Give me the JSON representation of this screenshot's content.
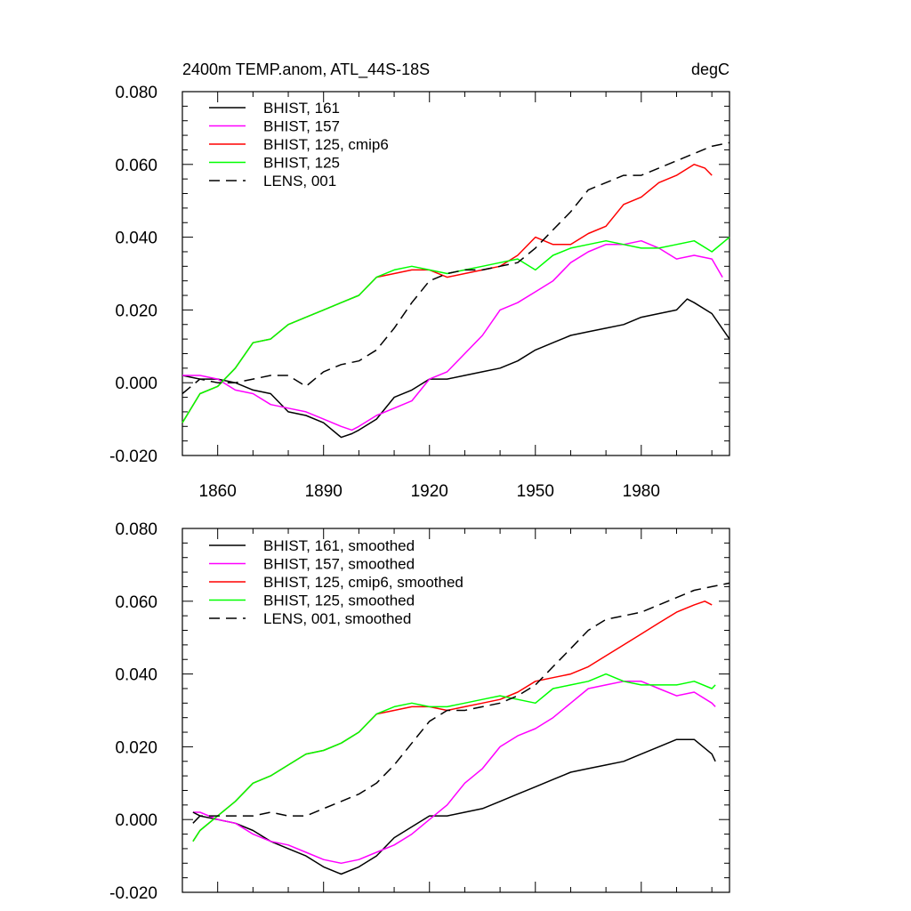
{
  "colors": {
    "BHIST_161": "#000000",
    "BHIST_157": "#ff00ff",
    "BHIST_125_cmip6": "#ff0000",
    "BHIST_125": "#00ff00",
    "LENS_001": "#000000"
  },
  "chart_data": [
    {
      "type": "line",
      "title_left": "2400m TEMP.anom, ATL_44S-18S",
      "title_right": "degC",
      "xlim": [
        1850,
        2005
      ],
      "ylim": [
        -0.02,
        0.08
      ],
      "y_ticks": [
        -0.02,
        0.0,
        0.02,
        0.04,
        0.06,
        0.08
      ],
      "y_tick_labels": [
        "-0.020",
        "0.000",
        "0.020",
        "0.040",
        "0.060",
        "0.080"
      ],
      "x_ticks": [
        1860,
        1890,
        1920,
        1950,
        1980
      ],
      "x_tick_labels": [
        "1860",
        "1890",
        "1920",
        "1950",
        "1980"
      ],
      "legend_position": "top-left",
      "series": [
        {
          "name": "BHIST, 161",
          "color_key": "BHIST_161",
          "dash": "solid",
          "x": [
            1850,
            1855,
            1860,
            1865,
            1870,
            1875,
            1880,
            1885,
            1890,
            1895,
            1898,
            1900,
            1905,
            1910,
            1915,
            1920,
            1925,
            1930,
            1935,
            1940,
            1945,
            1950,
            1955,
            1960,
            1965,
            1970,
            1975,
            1980,
            1985,
            1990,
            1993,
            1995,
            2000,
            2005
          ],
          "y": [
            0.002,
            0.001,
            0.001,
            0.0,
            -0.002,
            -0.003,
            -0.008,
            -0.009,
            -0.011,
            -0.015,
            -0.014,
            -0.013,
            -0.01,
            -0.004,
            -0.002,
            0.001,
            0.001,
            0.002,
            0.003,
            0.004,
            0.006,
            0.009,
            0.011,
            0.013,
            0.014,
            0.015,
            0.016,
            0.018,
            0.019,
            0.02,
            0.023,
            0.022,
            0.019,
            0.012
          ]
        },
        {
          "name": "BHIST, 157",
          "color_key": "BHIST_157",
          "dash": "solid",
          "x": [
            1850,
            1855,
            1860,
            1865,
            1870,
            1875,
            1880,
            1885,
            1890,
            1895,
            1898,
            1900,
            1905,
            1910,
            1915,
            1920,
            1925,
            1930,
            1935,
            1940,
            1945,
            1950,
            1955,
            1960,
            1965,
            1970,
            1975,
            1980,
            1985,
            1990,
            1995,
            2000,
            2003
          ],
          "y": [
            0.002,
            0.002,
            0.001,
            -0.002,
            -0.003,
            -0.006,
            -0.007,
            -0.008,
            -0.01,
            -0.012,
            -0.013,
            -0.012,
            -0.009,
            -0.007,
            -0.005,
            0.001,
            0.003,
            0.008,
            0.013,
            0.02,
            0.022,
            0.025,
            0.028,
            0.033,
            0.036,
            0.038,
            0.038,
            0.039,
            0.037,
            0.034,
            0.035,
            0.034,
            0.029
          ]
        },
        {
          "name": "BHIST, 125, cmip6",
          "color_key": "BHIST_125_cmip6",
          "dash": "solid",
          "x": [
            1850,
            1855,
            1860,
            1865,
            1870,
            1875,
            1880,
            1885,
            1890,
            1895,
            1900,
            1905,
            1910,
            1915,
            1920,
            1925,
            1930,
            1935,
            1940,
            1945,
            1950,
            1955,
            1960,
            1965,
            1970,
            1975,
            1980,
            1985,
            1990,
            1995,
            1998,
            2000
          ],
          "y": [
            -0.011,
            -0.003,
            -0.001,
            0.004,
            0.011,
            0.012,
            0.016,
            0.018,
            0.02,
            0.022,
            0.024,
            0.029,
            0.03,
            0.031,
            0.031,
            0.029,
            0.03,
            0.031,
            0.032,
            0.035,
            0.04,
            0.038,
            0.038,
            0.041,
            0.043,
            0.049,
            0.051,
            0.055,
            0.057,
            0.06,
            0.059,
            0.057
          ]
        },
        {
          "name": "BHIST, 125",
          "color_key": "BHIST_125",
          "dash": "solid",
          "x": [
            1850,
            1855,
            1860,
            1865,
            1870,
            1875,
            1880,
            1885,
            1890,
            1895,
            1900,
            1905,
            1910,
            1915,
            1920,
            1925,
            1930,
            1935,
            1940,
            1945,
            1950,
            1955,
            1960,
            1965,
            1970,
            1975,
            1980,
            1985,
            1990,
            1995,
            2000,
            2005
          ],
          "y": [
            -0.011,
            -0.003,
            -0.001,
            0.004,
            0.011,
            0.012,
            0.016,
            0.018,
            0.02,
            0.022,
            0.024,
            0.029,
            0.031,
            0.032,
            0.031,
            0.03,
            0.031,
            0.032,
            0.033,
            0.034,
            0.031,
            0.035,
            0.037,
            0.038,
            0.039,
            0.038,
            0.037,
            0.037,
            0.038,
            0.039,
            0.036,
            0.04
          ]
        },
        {
          "name": "LENS, 001",
          "color_key": "LENS_001",
          "dash": "dashed",
          "x": [
            1850,
            1855,
            1860,
            1865,
            1870,
            1875,
            1880,
            1885,
            1890,
            1895,
            1900,
            1905,
            1910,
            1915,
            1920,
            1925,
            1930,
            1935,
            1940,
            1945,
            1950,
            1955,
            1960,
            1965,
            1970,
            1975,
            1980,
            1985,
            1990,
            1995,
            2000,
            2005
          ],
          "y": [
            -0.003,
            0.001,
            0.0,
            0.0,
            0.001,
            0.002,
            0.002,
            -0.001,
            0.003,
            0.005,
            0.006,
            0.009,
            0.015,
            0.022,
            0.028,
            0.03,
            0.031,
            0.031,
            0.032,
            0.033,
            0.037,
            0.042,
            0.047,
            0.053,
            0.055,
            0.057,
            0.057,
            0.059,
            0.061,
            0.063,
            0.065,
            0.066
          ]
        }
      ]
    },
    {
      "type": "line",
      "xlim": [
        1850,
        2005
      ],
      "ylim": [
        -0.02,
        0.08
      ],
      "y_ticks": [
        -0.02,
        0.0,
        0.02,
        0.04,
        0.06,
        0.08
      ],
      "y_tick_labels": [
        "-0.020",
        "0.000",
        "0.020",
        "0.040",
        "0.060",
        "0.080"
      ],
      "x_ticks": [
        1860,
        1890,
        1920,
        1950,
        1980
      ],
      "legend_position": "top-left",
      "series": [
        {
          "name": "BHIST, 161, smoothed",
          "color_key": "BHIST_161",
          "dash": "solid",
          "x": [
            1853,
            1855,
            1860,
            1865,
            1870,
            1875,
            1880,
            1885,
            1890,
            1895,
            1900,
            1905,
            1910,
            1915,
            1920,
            1925,
            1930,
            1935,
            1940,
            1945,
            1950,
            1955,
            1960,
            1965,
            1970,
            1975,
            1980,
            1985,
            1990,
            1995,
            2000,
            2001
          ],
          "y": [
            -0.001,
            0.001,
            0.0,
            -0.001,
            -0.003,
            -0.006,
            -0.008,
            -0.01,
            -0.013,
            -0.015,
            -0.013,
            -0.01,
            -0.005,
            -0.002,
            0.001,
            0.001,
            0.002,
            0.003,
            0.005,
            0.007,
            0.009,
            0.011,
            0.013,
            0.014,
            0.015,
            0.016,
            0.018,
            0.02,
            0.022,
            0.022,
            0.018,
            0.016
          ]
        },
        {
          "name": "BHIST, 157, smoothed",
          "color_key": "BHIST_157",
          "dash": "solid",
          "x": [
            1853,
            1855,
            1860,
            1865,
            1870,
            1875,
            1880,
            1885,
            1890,
            1895,
            1900,
            1905,
            1910,
            1915,
            1920,
            1925,
            1930,
            1935,
            1940,
            1945,
            1950,
            1955,
            1960,
            1965,
            1970,
            1975,
            1980,
            1985,
            1990,
            1995,
            2000,
            2001
          ],
          "y": [
            0.002,
            0.002,
            0.0,
            -0.001,
            -0.004,
            -0.006,
            -0.007,
            -0.009,
            -0.011,
            -0.012,
            -0.011,
            -0.009,
            -0.007,
            -0.004,
            0.0,
            0.004,
            0.01,
            0.014,
            0.02,
            0.023,
            0.025,
            0.028,
            0.032,
            0.036,
            0.037,
            0.038,
            0.038,
            0.036,
            0.034,
            0.035,
            0.032,
            0.031
          ]
        },
        {
          "name": "BHIST, 125, cmip6, smoothed",
          "color_key": "BHIST_125_cmip6",
          "dash": "solid",
          "x": [
            1853,
            1855,
            1860,
            1865,
            1870,
            1875,
            1880,
            1885,
            1890,
            1895,
            1900,
            1905,
            1910,
            1915,
            1920,
            1925,
            1930,
            1935,
            1940,
            1945,
            1950,
            1955,
            1960,
            1965,
            1970,
            1975,
            1980,
            1985,
            1990,
            1995,
            1998,
            2000
          ],
          "y": [
            -0.006,
            -0.003,
            0.001,
            0.005,
            0.01,
            0.012,
            0.015,
            0.018,
            0.019,
            0.021,
            0.024,
            0.029,
            0.03,
            0.031,
            0.031,
            0.03,
            0.031,
            0.032,
            0.033,
            0.035,
            0.038,
            0.039,
            0.04,
            0.042,
            0.045,
            0.048,
            0.051,
            0.054,
            0.057,
            0.059,
            0.06,
            0.059
          ]
        },
        {
          "name": "BHIST, 125, smoothed",
          "color_key": "BHIST_125",
          "dash": "solid",
          "x": [
            1853,
            1855,
            1860,
            1865,
            1870,
            1875,
            1880,
            1885,
            1890,
            1895,
            1900,
            1905,
            1910,
            1915,
            1920,
            1925,
            1930,
            1935,
            1940,
            1945,
            1950,
            1955,
            1960,
            1965,
            1970,
            1975,
            1980,
            1985,
            1990,
            1995,
            2000,
            2001
          ],
          "y": [
            -0.006,
            -0.003,
            0.001,
            0.005,
            0.01,
            0.012,
            0.015,
            0.018,
            0.019,
            0.021,
            0.024,
            0.029,
            0.031,
            0.032,
            0.031,
            0.031,
            0.032,
            0.033,
            0.034,
            0.033,
            0.032,
            0.036,
            0.037,
            0.038,
            0.04,
            0.038,
            0.037,
            0.037,
            0.037,
            0.038,
            0.036,
            0.037
          ]
        },
        {
          "name": "LENS, 001, smoothed",
          "color_key": "LENS_001",
          "dash": "dashed",
          "x": [
            1853,
            1855,
            1860,
            1865,
            1870,
            1875,
            1880,
            1885,
            1890,
            1895,
            1900,
            1905,
            1910,
            1915,
            1920,
            1925,
            1930,
            1935,
            1940,
            1945,
            1950,
            1955,
            1960,
            1965,
            1970,
            1975,
            1980,
            1985,
            1990,
            1995,
            2000,
            2005
          ],
          "y": [
            0.002,
            0.001,
            0.001,
            0.001,
            0.001,
            0.002,
            0.001,
            0.001,
            0.003,
            0.005,
            0.007,
            0.01,
            0.015,
            0.021,
            0.027,
            0.03,
            0.03,
            0.031,
            0.032,
            0.034,
            0.037,
            0.042,
            0.047,
            0.052,
            0.055,
            0.056,
            0.057,
            0.059,
            0.061,
            0.063,
            0.064,
            0.065
          ]
        }
      ]
    }
  ]
}
